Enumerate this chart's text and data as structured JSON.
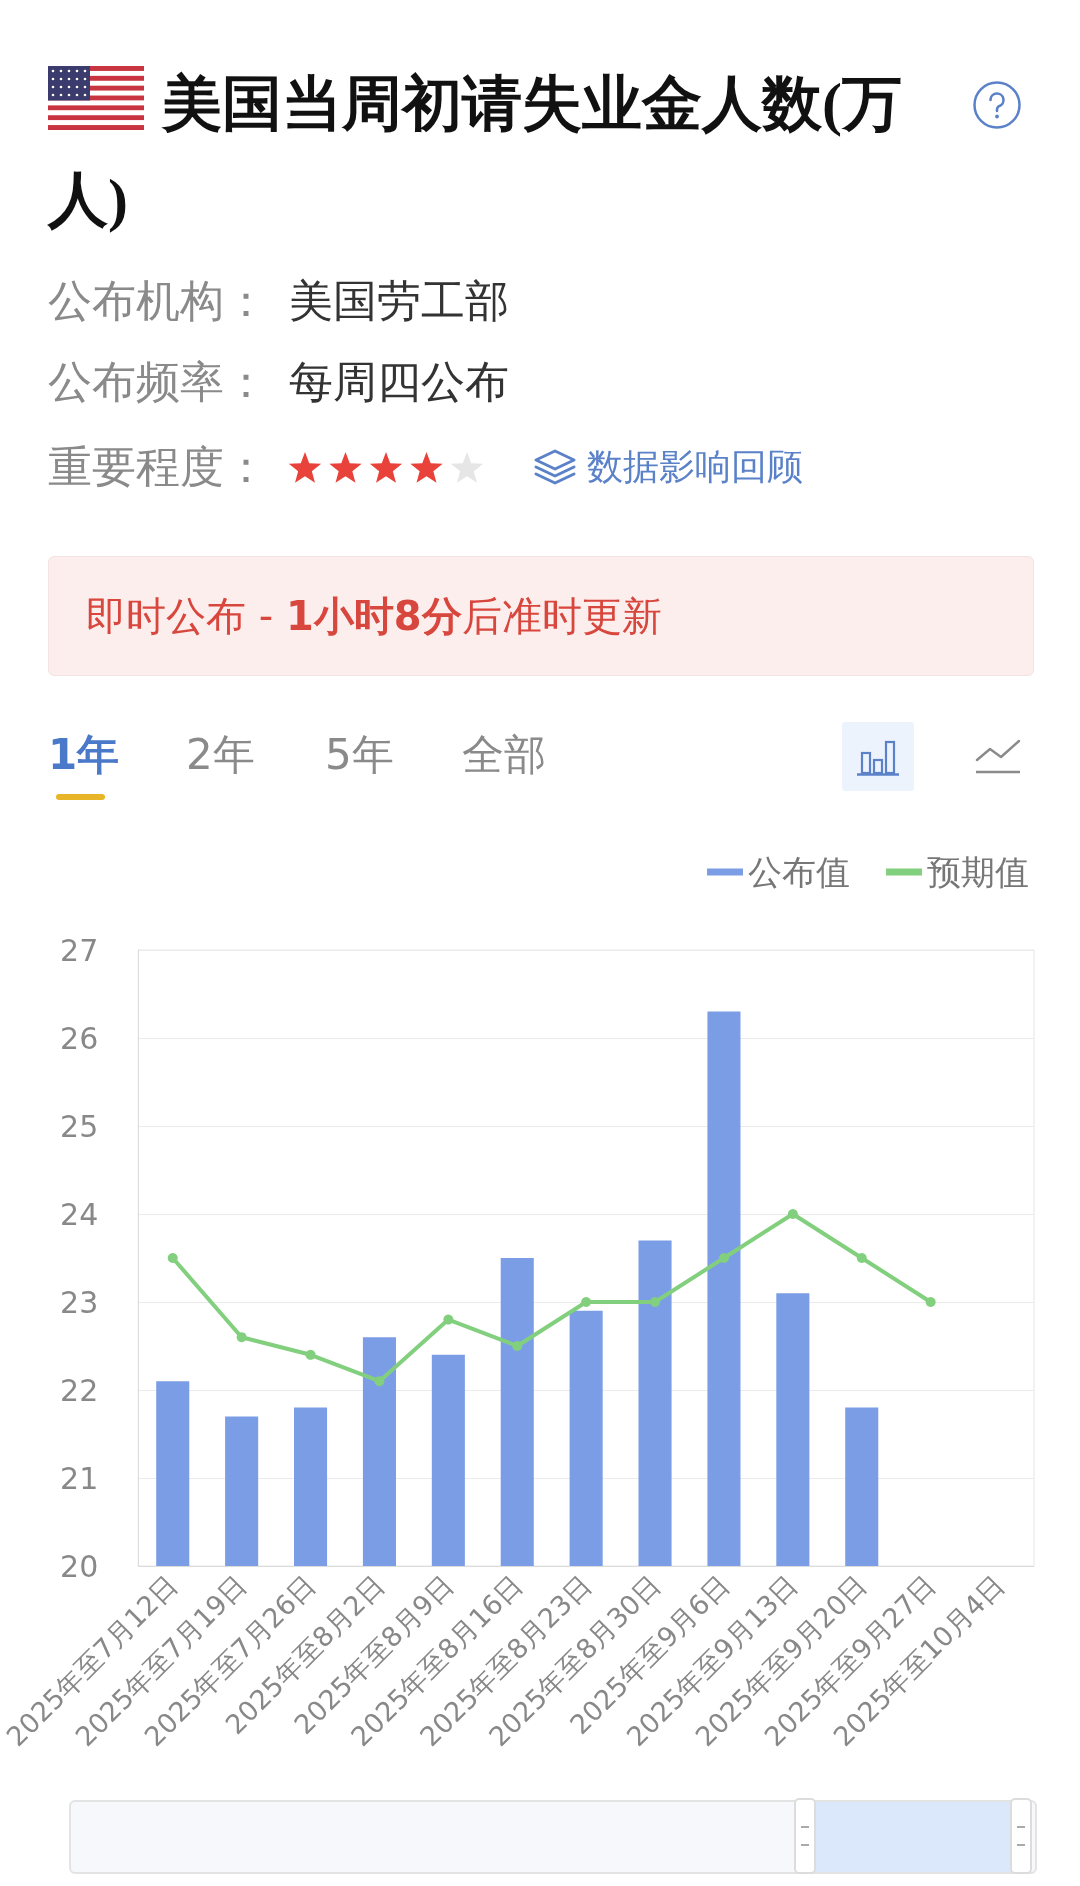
{
  "chart_data": {
    "type": "bar",
    "title": "美国当周初请失业金人数(万人)",
    "categories": [
      "2025年至7月12日",
      "2025年至7月19日",
      "2025年至7月26日",
      "2025年至8月2日",
      "2025年至8月9日",
      "2025年至8月16日",
      "2025年至8月23日",
      "2025年至8月30日",
      "2025年至9月6日",
      "2025年至9月13日",
      "2025年至9月20日",
      "2025年至9月27日",
      "2025年至10月4日"
    ],
    "series": [
      {
        "name": "公布值",
        "color": "#7b9de6",
        "values": [
          22.1,
          21.7,
          21.8,
          22.6,
          22.4,
          23.5,
          22.9,
          23.7,
          26.3,
          23.1,
          21.8,
          null,
          null
        ]
      },
      {
        "name": "预期值",
        "type": "line",
        "color": "#82cf7e",
        "values": [
          23.5,
          22.6,
          22.4,
          22.1,
          22.8,
          22.5,
          23.0,
          23.0,
          23.5,
          24.0,
          23.5,
          23.0,
          null
        ]
      }
    ],
    "ylim": [
      20,
      27
    ],
    "yticks": [
      20,
      21,
      22,
      23,
      24,
      25,
      26,
      27
    ],
    "grid": "y",
    "legend": "top right",
    "marker": "circle",
    "annotations": [
      "公布机构：",
      "美国劳工部",
      "公布频率：",
      "每周四公布",
      "重要程度：",
      "数据影响回顾",
      "即时公布 - ",
      "1小时8分",
      "后准时更新",
      "1年",
      "2年",
      "5年",
      "全部"
    ]
  }
}
